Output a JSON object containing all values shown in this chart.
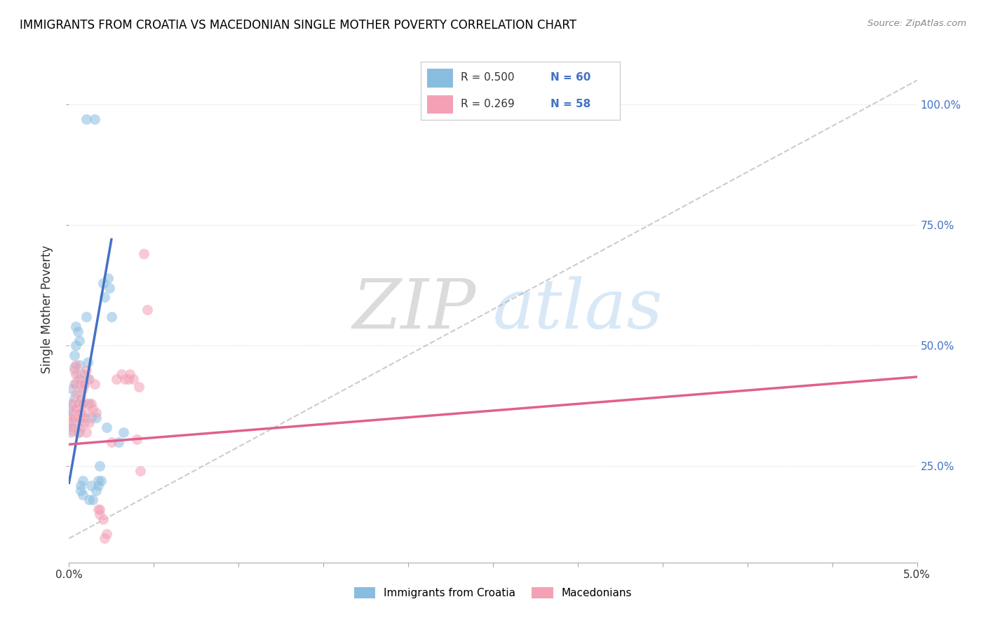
{
  "title": "IMMIGRANTS FROM CROATIA VS MACEDONIAN SINGLE MOTHER POVERTY CORRELATION CHART",
  "source": "Source: ZipAtlas.com",
  "ylabel": "Single Mother Poverty",
  "yticks": [
    0.25,
    0.5,
    0.75,
    1.0
  ],
  "ytick_labels": [
    "25.0%",
    "50.0%",
    "75.0%",
    "100.0%"
  ],
  "xlim": [
    0.0,
    0.05
  ],
  "ylim": [
    0.05,
    1.1
  ],
  "legend_r1": "R = 0.500",
  "legend_n1": "N = 60",
  "legend_r2": "R = 0.269",
  "legend_n2": "N = 58",
  "color_blue": "#89bde0",
  "color_pink": "#f4a0b5",
  "color_blue_text": "#4472c4",
  "color_pink_text": "#e06090",
  "watermark_zip": "ZIP",
  "watermark_atlas": "atlas",
  "blue_scatter": [
    [
      0.0,
      0.365
    ],
    [
      0.0,
      0.34
    ],
    [
      0.0001,
      0.36
    ],
    [
      0.0001,
      0.355
    ],
    [
      0.0001,
      0.37
    ],
    [
      0.0002,
      0.35
    ],
    [
      0.0002,
      0.38
    ],
    [
      0.0002,
      0.325
    ],
    [
      0.0002,
      0.41
    ],
    [
      0.0003,
      0.36
    ],
    [
      0.0003,
      0.335
    ],
    [
      0.0003,
      0.39
    ],
    [
      0.0003,
      0.455
    ],
    [
      0.0003,
      0.48
    ],
    [
      0.0004,
      0.345
    ],
    [
      0.0004,
      0.42
    ],
    [
      0.0004,
      0.5
    ],
    [
      0.0004,
      0.54
    ],
    [
      0.0005,
      0.33
    ],
    [
      0.0005,
      0.37
    ],
    [
      0.0005,
      0.43
    ],
    [
      0.0005,
      0.53
    ],
    [
      0.0006,
      0.32
    ],
    [
      0.0006,
      0.38
    ],
    [
      0.0006,
      0.46
    ],
    [
      0.0006,
      0.51
    ],
    [
      0.0007,
      0.35
    ],
    [
      0.0007,
      0.4
    ],
    [
      0.0007,
      0.44
    ],
    [
      0.0007,
      0.2
    ],
    [
      0.0007,
      0.21
    ],
    [
      0.0008,
      0.38
    ],
    [
      0.0008,
      0.19
    ],
    [
      0.0008,
      0.22
    ],
    [
      0.0009,
      0.35
    ],
    [
      0.0009,
      0.42
    ],
    [
      0.001,
      0.56
    ],
    [
      0.001,
      0.97
    ],
    [
      0.0011,
      0.43
    ],
    [
      0.0011,
      0.465
    ],
    [
      0.0012,
      0.38
    ],
    [
      0.0012,
      0.18
    ],
    [
      0.0013,
      0.35
    ],
    [
      0.0013,
      0.21
    ],
    [
      0.0014,
      0.18
    ],
    [
      0.0015,
      0.97
    ],
    [
      0.0016,
      0.35
    ],
    [
      0.0016,
      0.2
    ],
    [
      0.0017,
      0.22
    ],
    [
      0.0017,
      0.21
    ],
    [
      0.0018,
      0.25
    ],
    [
      0.0019,
      0.22
    ],
    [
      0.002,
      0.63
    ],
    [
      0.0021,
      0.6
    ],
    [
      0.0022,
      0.33
    ],
    [
      0.0023,
      0.64
    ],
    [
      0.0024,
      0.62
    ],
    [
      0.0025,
      0.56
    ],
    [
      0.0029,
      0.3
    ],
    [
      0.0032,
      0.32
    ]
  ],
  "pink_scatter": [
    [
      0.0,
      0.34
    ],
    [
      0.0001,
      0.355
    ],
    [
      0.0001,
      0.32
    ],
    [
      0.0002,
      0.345
    ],
    [
      0.0002,
      0.38
    ],
    [
      0.0002,
      0.33
    ],
    [
      0.0003,
      0.37
    ],
    [
      0.0003,
      0.42
    ],
    [
      0.0003,
      0.45
    ],
    [
      0.0003,
      0.35
    ],
    [
      0.0004,
      0.37
    ],
    [
      0.0004,
      0.4
    ],
    [
      0.0004,
      0.44
    ],
    [
      0.0004,
      0.46
    ],
    [
      0.0005,
      0.35
    ],
    [
      0.0005,
      0.38
    ],
    [
      0.0005,
      0.32
    ],
    [
      0.0006,
      0.43
    ],
    [
      0.0006,
      0.36
    ],
    [
      0.0006,
      0.42
    ],
    [
      0.0007,
      0.36
    ],
    [
      0.0007,
      0.35
    ],
    [
      0.0007,
      0.39
    ],
    [
      0.0007,
      0.33
    ],
    [
      0.0008,
      0.38
    ],
    [
      0.0008,
      0.41
    ],
    [
      0.0008,
      0.35
    ],
    [
      0.0009,
      0.34
    ],
    [
      0.0009,
      0.42
    ],
    [
      0.0009,
      0.44
    ],
    [
      0.001,
      0.32
    ],
    [
      0.001,
      0.45
    ],
    [
      0.0011,
      0.38
    ],
    [
      0.0011,
      0.36
    ],
    [
      0.0012,
      0.34
    ],
    [
      0.0012,
      0.43
    ],
    [
      0.0013,
      0.38
    ],
    [
      0.0014,
      0.37
    ],
    [
      0.0015,
      0.42
    ],
    [
      0.0016,
      0.36
    ],
    [
      0.0017,
      0.16
    ],
    [
      0.0018,
      0.15
    ],
    [
      0.0018,
      0.16
    ],
    [
      0.002,
      0.14
    ],
    [
      0.0021,
      0.1
    ],
    [
      0.0022,
      0.11
    ],
    [
      0.0025,
      0.3
    ],
    [
      0.0028,
      0.43
    ],
    [
      0.0031,
      0.44
    ],
    [
      0.0033,
      0.43
    ],
    [
      0.0035,
      0.43
    ],
    [
      0.0036,
      0.44
    ],
    [
      0.0038,
      0.43
    ],
    [
      0.004,
      0.305
    ],
    [
      0.0041,
      0.415
    ],
    [
      0.0042,
      0.24
    ],
    [
      0.0044,
      0.69
    ],
    [
      0.0046,
      0.575
    ]
  ],
  "blue_line": {
    "x0": 0.0,
    "y0": 0.215,
    "x1": 0.0025,
    "y1": 0.72
  },
  "pink_line": {
    "x0": 0.0,
    "y0": 0.295,
    "x1": 0.05,
    "y1": 0.435
  },
  "gray_line": {
    "x0": 0.0,
    "y0": 0.1,
    "x1": 0.05,
    "y1": 1.05
  }
}
